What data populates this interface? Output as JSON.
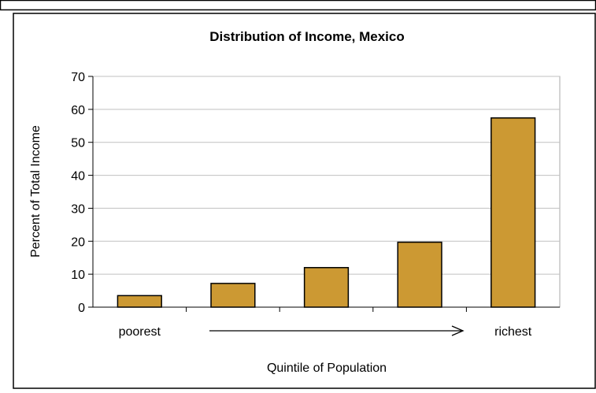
{
  "chart_data": {
    "type": "bar",
    "title": "Distribution of Income, Mexico",
    "xlabel": "Quintile of Population",
    "ylabel": "Percent of Total Income",
    "categories": [
      "poorest",
      "",
      "",
      "",
      "richest"
    ],
    "values": [
      3.5,
      7.2,
      12.0,
      19.7,
      57.4
    ],
    "ylim": [
      0,
      70
    ],
    "yticks": [
      "0",
      "10",
      "20",
      "30",
      "40",
      "50",
      "60",
      "70"
    ],
    "grid": true,
    "legend": "none",
    "bar_color": "#cc9933",
    "bar_edge_color": "#000000",
    "gridline_color": "#c0c0c0"
  }
}
